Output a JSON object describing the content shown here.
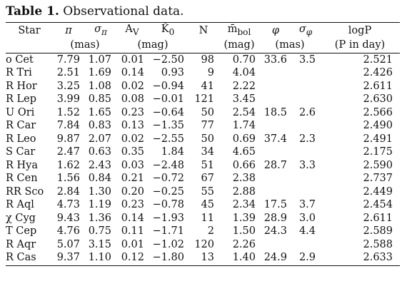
{
  "caption": {
    "label": "Table 1.",
    "text": "Observational data."
  },
  "header": {
    "row1": [
      "Star",
      "π",
      "σ",
      "A",
      "K̄",
      "N",
      "m̄",
      "φ",
      "σ",
      "logP"
    ],
    "subscripts": {
      "sigma_pi": "π",
      "av": "V",
      "k0": "0",
      "mbol": "bol",
      "sigma_phi": "φ"
    },
    "row2": {
      "pi_units": "(mas)",
      "ext_units": "(mag)",
      "mbol_units": "(mag)",
      "phi_units": "(mas)",
      "logp_units": "(P in day)"
    }
  },
  "rows": [
    [
      "o Cet",
      "7.79",
      "1.07",
      "0.01",
      "−2.50",
      "98",
      "0.70",
      "33.6",
      "3.5",
      "2.521"
    ],
    [
      "R Tri",
      "2.51",
      "1.69",
      "0.14",
      "0.93",
      "9",
      "4.04",
      "",
      "",
      "2.426"
    ],
    [
      "R Hor",
      "3.25",
      "1.08",
      "0.02",
      "−0.94",
      "41",
      "2.22",
      "",
      "",
      "2.611"
    ],
    [
      "R Lep",
      "3.99",
      "0.85",
      "0.08",
      "−0.01",
      "121",
      "3.45",
      "",
      "",
      "2.630"
    ],
    [
      "U Ori",
      "1.52",
      "1.65",
      "0.23",
      "−0.64",
      "50",
      "2.54",
      "18.5",
      "2.6",
      "2.566"
    ],
    [
      "R Car",
      "7.84",
      "0.83",
      "0.13",
      "−1.35",
      "77",
      "1.74",
      "",
      "",
      "2.490"
    ],
    [
      "R Leo",
      "9.87",
      "2.07",
      "0.02",
      "−2.55",
      "50",
      "0.69",
      "37.4",
      "2.3",
      "2.491"
    ],
    [
      "S Car",
      "2.47",
      "0.63",
      "0.35",
      "1.84",
      "34",
      "4.65",
      "",
      "",
      "2.175"
    ],
    [
      "R Hya",
      "1.62",
      "2.43",
      "0.03",
      "−2.48",
      "51",
      "0.66",
      "28.7",
      "3.3",
      "2.590"
    ],
    [
      "R Cen",
      "1.56",
      "0.84",
      "0.21",
      "−0.72",
      "67",
      "2.38",
      "",
      "",
      "2.737"
    ],
    [
      "RR Sco",
      "2.84",
      "1.30",
      "0.20",
      "−0.25",
      "55",
      "2.88",
      "",
      "",
      "2.449"
    ],
    [
      "R Aql",
      "4.73",
      "1.19",
      "0.23",
      "−0.78",
      "45",
      "2.34",
      "17.5",
      "3.7",
      "2.454"
    ],
    [
      "χ Cyg",
      "9.43",
      "1.36",
      "0.14",
      "−1.93",
      "11",
      "1.39",
      "28.9",
      "3.0",
      "2.611"
    ],
    [
      "T Cep",
      "4.76",
      "0.75",
      "0.11",
      "−1.71",
      "2",
      "1.50",
      "24.3",
      "4.4",
      "2.589"
    ],
    [
      "R Aqr",
      "5.07",
      "3.15",
      "0.01",
      "−1.02",
      "120",
      "2.26",
      "",
      "",
      "2.588"
    ],
    [
      "R Cas",
      "9.37",
      "1.10",
      "0.12",
      "−1.80",
      "13",
      "1.40",
      "24.9",
      "2.9",
      "2.633"
    ]
  ]
}
